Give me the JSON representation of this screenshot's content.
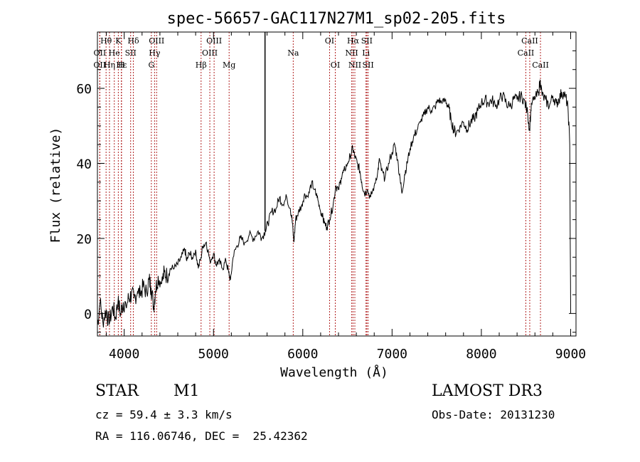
{
  "chart_data": {
    "type": "line",
    "title": "spec-56657-GAC117N27M1_sp02-205.fits",
    "xlabel": "Wavelength (Å)",
    "ylabel": "Flux (relative)",
    "xlim": [
      3700,
      9060
    ],
    "ylim": [
      -6,
      75
    ],
    "x_ticks": [
      4000,
      5000,
      6000,
      7000,
      8000,
      9000
    ],
    "y_ticks": [
      0,
      20,
      40,
      60
    ],
    "series": [
      {
        "name": "spectrum",
        "points": [
          [
            3700,
            -3
          ],
          [
            3730,
            3
          ],
          [
            3760,
            -2
          ],
          [
            3800,
            1
          ],
          [
            3830,
            -3
          ],
          [
            3870,
            2
          ],
          [
            3900,
            -1
          ],
          [
            3930,
            3
          ],
          [
            3960,
            0
          ],
          [
            3990,
            3
          ],
          [
            4020,
            2
          ],
          [
            4050,
            4
          ],
          [
            4080,
            5
          ],
          [
            4110,
            4
          ],
          [
            4150,
            6
          ],
          [
            4180,
            5
          ],
          [
            4210,
            7
          ],
          [
            4250,
            6
          ],
          [
            4280,
            9
          ],
          [
            4300,
            7
          ],
          [
            4330,
            2
          ],
          [
            4350,
            6
          ],
          [
            4380,
            10
          ],
          [
            4420,
            8
          ],
          [
            4450,
            11
          ],
          [
            4480,
            10
          ],
          [
            4520,
            12
          ],
          [
            4560,
            12
          ],
          [
            4600,
            13
          ],
          [
            4640,
            15
          ],
          [
            4680,
            17
          ],
          [
            4700,
            14
          ],
          [
            4730,
            16
          ],
          [
            4760,
            15
          ],
          [
            4800,
            17
          ],
          [
            4830,
            12
          ],
          [
            4860,
            15
          ],
          [
            4880,
            18
          ],
          [
            4920,
            19
          ],
          [
            4960,
            14
          ],
          [
            5000,
            16
          ],
          [
            5030,
            13
          ],
          [
            5060,
            14
          ],
          [
            5100,
            12
          ],
          [
            5140,
            14
          ],
          [
            5170,
            11
          ],
          [
            5190,
            9
          ],
          [
            5220,
            15
          ],
          [
            5260,
            18
          ],
          [
            5300,
            20
          ],
          [
            5350,
            19
          ],
          [
            5400,
            21
          ],
          [
            5450,
            20
          ],
          [
            5500,
            22
          ],
          [
            5540,
            20
          ],
          [
            5580,
            22
          ],
          [
            5610,
            24
          ],
          [
            5650,
            27
          ],
          [
            5700,
            28
          ],
          [
            5740,
            31
          ],
          [
            5780,
            29
          ],
          [
            5820,
            31
          ],
          [
            5860,
            28
          ],
          [
            5880,
            25
          ],
          [
            5900,
            19
          ],
          [
            5920,
            25
          ],
          [
            5950,
            27
          ],
          [
            5990,
            29
          ],
          [
            6020,
            32
          ],
          [
            6060,
            31
          ],
          [
            6100,
            35
          ],
          [
            6130,
            33
          ],
          [
            6160,
            31
          ],
          [
            6190,
            28
          ],
          [
            6220,
            26
          ],
          [
            6240,
            24
          ],
          [
            6270,
            23
          ],
          [
            6300,
            25
          ],
          [
            6340,
            29
          ],
          [
            6370,
            34
          ],
          [
            6400,
            33
          ],
          [
            6430,
            36
          ],
          [
            6460,
            38
          ],
          [
            6500,
            40
          ],
          [
            6530,
            42
          ],
          [
            6560,
            44
          ],
          [
            6580,
            42
          ],
          [
            6610,
            40
          ],
          [
            6640,
            38
          ],
          [
            6660,
            35
          ],
          [
            6690,
            32
          ],
          [
            6720,
            33
          ],
          [
            6760,
            31
          ],
          [
            6800,
            34
          ],
          [
            6840,
            38
          ],
          [
            6860,
            41
          ],
          [
            6880,
            38
          ],
          [
            6920,
            36
          ],
          [
            6960,
            40
          ],
          [
            7000,
            43
          ],
          [
            7030,
            45
          ],
          [
            7060,
            41
          ],
          [
            7090,
            36
          ],
          [
            7110,
            32
          ],
          [
            7140,
            37
          ],
          [
            7170,
            40
          ],
          [
            7200,
            44
          ],
          [
            7240,
            47
          ],
          [
            7280,
            49
          ],
          [
            7320,
            51
          ],
          [
            7360,
            53
          ],
          [
            7400,
            55
          ],
          [
            7440,
            54
          ],
          [
            7480,
            55
          ],
          [
            7520,
            57
          ],
          [
            7560,
            56
          ],
          [
            7600,
            57
          ],
          [
            7630,
            55
          ],
          [
            7660,
            52
          ],
          [
            7690,
            49
          ],
          [
            7720,
            48
          ],
          [
            7760,
            50
          ],
          [
            7800,
            51
          ],
          [
            7840,
            49
          ],
          [
            7880,
            51
          ],
          [
            7920,
            52
          ],
          [
            7960,
            54
          ],
          [
            8000,
            56
          ],
          [
            8040,
            57
          ],
          [
            8080,
            56
          ],
          [
            8120,
            57
          ],
          [
            8160,
            55
          ],
          [
            8200,
            57
          ],
          [
            8240,
            58
          ],
          [
            8280,
            56
          ],
          [
            8320,
            55
          ],
          [
            8360,
            57
          ],
          [
            8400,
            57
          ],
          [
            8440,
            58
          ],
          [
            8480,
            57
          ],
          [
            8520,
            53
          ],
          [
            8540,
            49
          ],
          [
            8560,
            56
          ],
          [
            8600,
            57
          ],
          [
            8640,
            59
          ],
          [
            8660,
            62
          ],
          [
            8680,
            58
          ],
          [
            8720,
            57
          ],
          [
            8760,
            55
          ],
          [
            8800,
            58
          ],
          [
            8840,
            56
          ],
          [
            8870,
            57
          ],
          [
            8900,
            59
          ],
          [
            8940,
            58
          ],
          [
            8970,
            55
          ],
          [
            8990,
            45
          ],
          [
            9000,
            0
          ]
        ]
      }
    ],
    "spike": {
      "x": 5577,
      "y_top": 75
    },
    "lines": [
      {
        "label": "Hθ",
        "x": 3797,
        "row": 0
      },
      {
        "label": "K",
        "x": 3934,
        "row": 0
      },
      {
        "label": "Hδ",
        "x": 4102,
        "row": 0
      },
      {
        "label": "OIII",
        "x": 4363,
        "row": 0
      },
      {
        "label": "OIII",
        "x": 5007,
        "row": 0
      },
      {
        "label": "OI",
        "x": 6300,
        "row": 0
      },
      {
        "label": "Hα",
        "x": 6563,
        "row": 0
      },
      {
        "label": "SII",
        "x": 6717,
        "row": 0
      },
      {
        "label": "CaII",
        "x": 8542,
        "row": 0
      },
      {
        "label": "OII",
        "x": 3727,
        "row": 1
      },
      {
        "label": "He",
        "x": 3889,
        "row": 1
      },
      {
        "label": "SII",
        "x": 4072,
        "row": 1
      },
      {
        "label": "Hγ",
        "x": 4340,
        "row": 1
      },
      {
        "label": "OIII",
        "x": 4959,
        "row": 1
      },
      {
        "label": "Na",
        "x": 5893,
        "row": 1
      },
      {
        "label": "NII",
        "x": 6548,
        "row": 1
      },
      {
        "label": "Li",
        "x": 6708,
        "row": 1
      },
      {
        "label": "CaII",
        "x": 8498,
        "row": 1
      },
      {
        "label": "OII",
        "x": 3726,
        "row": 2
      },
      {
        "label": "Hε",
        "x": 3970,
        "row": 2
      },
      {
        "label": "Hη",
        "x": 3835,
        "row": 2
      },
      {
        "label": "H",
        "x": 3968,
        "row": 2
      },
      {
        "label": "G",
        "x": 4304,
        "row": 2
      },
      {
        "label": "Hβ",
        "x": 4861,
        "row": 2
      },
      {
        "label": "Mg",
        "x": 5175,
        "row": 2
      },
      {
        "label": "OI",
        "x": 6364,
        "row": 2
      },
      {
        "label": "NII",
        "x": 6583,
        "row": 2
      },
      {
        "label": "SII",
        "x": 6731,
        "row": 2
      },
      {
        "label": "CaII",
        "x": 8662,
        "row": 2
      }
    ]
  },
  "info": {
    "class_label": "STAR",
    "subclass_label": "M1",
    "survey": "LAMOST DR3",
    "redshift": "cz = 59.4 ± 3.3 km/s",
    "obs_date": "Obs-Date: 20131230",
    "coords": "RA = 116.06746, DEC =  25.42362"
  },
  "colors": {
    "line_marker": "#b22222",
    "spectrum": "#000000",
    "axis": "#000000"
  }
}
